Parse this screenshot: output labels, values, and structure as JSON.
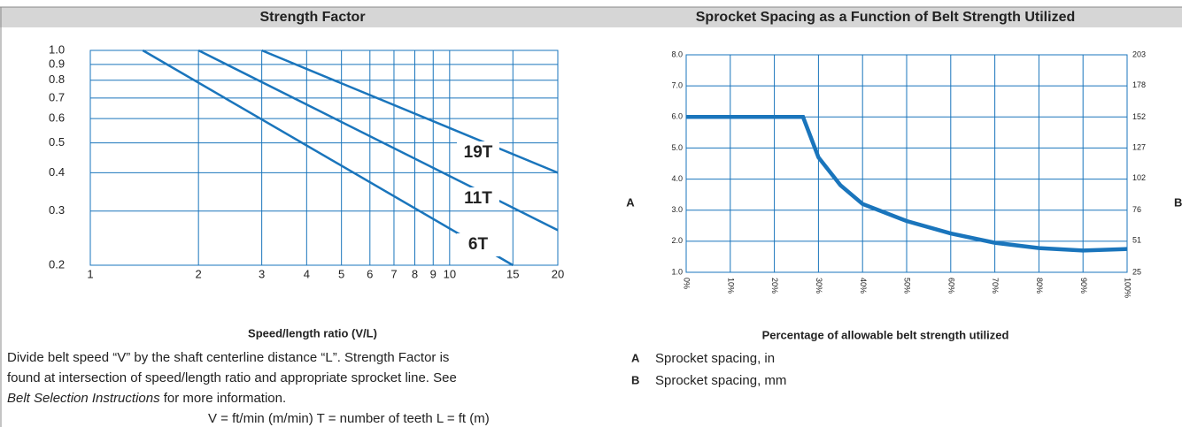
{
  "chart_data": [
    {
      "type": "line",
      "title": "Strength Factor",
      "x_label": "Speed/length ratio (V/L)",
      "xscale": "log",
      "yscale": "log",
      "grid": true,
      "color": "#1a75bc",
      "xlim": [
        1,
        20
      ],
      "xticks": [
        1,
        2,
        3,
        4,
        5,
        6,
        7,
        8,
        9,
        10,
        15,
        20
      ],
      "ylim": [
        0.2,
        1
      ],
      "yticks": [
        0.2,
        0.3,
        0.4,
        0.5,
        0.6,
        0.7,
        0.8,
        0.9,
        {
          "value": 1,
          "label": "1.0"
        }
      ],
      "series": [
        {
          "name": "19T",
          "color": "#1a75bc",
          "x": [
            3,
            20
          ],
          "values": [
            1,
            0.4
          ]
        },
        {
          "name": "11T",
          "color": "#1a75bc",
          "x": [
            2,
            20
          ],
          "values": [
            1,
            0.26
          ]
        },
        {
          "name": "6T",
          "color": "#1a75bc",
          "x": [
            1.4,
            15
          ],
          "values": [
            1,
            0.2
          ]
        }
      ]
    },
    {
      "type": "line",
      "title": "Sprocket Spacing as a Function of Belt Strength Utilized",
      "x_label": "Percentage of allowable belt strength utilized",
      "y_label": "A",
      "y2_label": "B",
      "grid": true,
      "color": "#1a75bc",
      "xlim": [
        0,
        100
      ],
      "xticks": [
        {
          "value": 0,
          "label": "0%"
        },
        {
          "value": 10,
          "label": "10%"
        },
        {
          "value": 20,
          "label": "20%"
        },
        {
          "value": 30,
          "label": "30%"
        },
        {
          "value": 40,
          "label": "40%"
        },
        {
          "value": 50,
          "label": "50%"
        },
        {
          "value": 60,
          "label": "60%"
        },
        {
          "value": 70,
          "label": "70%"
        },
        {
          "value": 80,
          "label": "80%"
        },
        {
          "value": 90,
          "label": "90%"
        },
        {
          "value": 100,
          "label": "100%"
        }
      ],
      "ylim": [
        1,
        8
      ],
      "yticks": [
        {
          "value": 1,
          "label": "1.0"
        },
        {
          "value": 2,
          "label": "2.0"
        },
        {
          "value": 3,
          "label": "3.0"
        },
        {
          "value": 4,
          "label": "4.0"
        },
        {
          "value": 5,
          "label": "5.0"
        },
        {
          "value": 6,
          "label": "6.0"
        },
        {
          "value": 7,
          "label": "7.0"
        },
        {
          "value": 8,
          "label": "8.0"
        }
      ],
      "y2lim": [
        25,
        203
      ],
      "y2ticks": [
        25,
        51,
        76,
        102,
        127,
        152,
        178,
        203
      ],
      "x": [
        0,
        26.5,
        30,
        35,
        40,
        50,
        60,
        70,
        80,
        90,
        100
      ],
      "values": [
        6,
        6,
        4.7,
        3.8,
        3.2,
        2.65,
        2.25,
        1.95,
        1.78,
        1.7,
        1.75
      ],
      "legend_notes": [
        {
          "key": "A",
          "text": "Sprocket spacing, in"
        },
        {
          "key": "B",
          "text": "Sprocket spacing, mm"
        }
      ]
    }
  ],
  "description": {
    "line1": "Divide belt speed “V” by the shaft centerline distance “L”. Strength Factor is",
    "line2": "found at intersection of speed/length ratio and appropriate sprocket line. See",
    "line3_italic": "Belt Selection Instructions",
    "line3_rest": " for more information.",
    "line4": "V = ft/min (m/min) T = number of teeth L = ft (m)"
  }
}
